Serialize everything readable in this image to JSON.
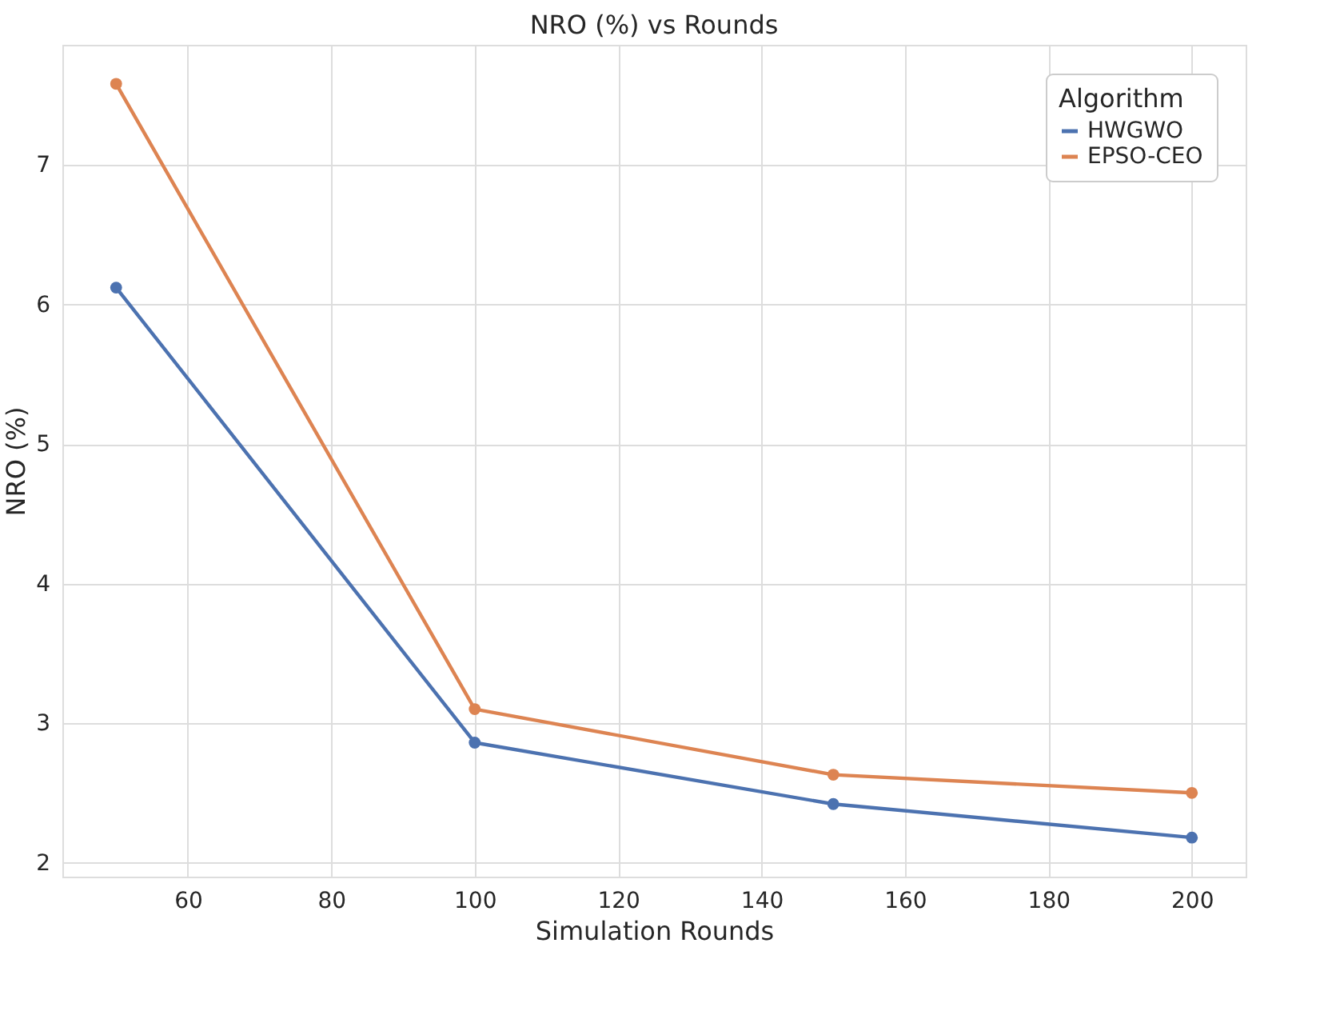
{
  "chart_data": {
    "type": "line",
    "title": "NRO (%) vs Rounds",
    "xlabel": "Simulation Rounds",
    "ylabel": "NRO (%)",
    "legend_title": "Algorithm",
    "x": [
      50,
      100,
      150,
      200
    ],
    "series": [
      {
        "name": "HWGWO",
        "color": "#4c72b0",
        "values": [
          6.12,
          2.86,
          2.42,
          2.18
        ]
      },
      {
        "name": "EPSO-CEO",
        "color": "#dd8452",
        "values": [
          7.58,
          3.1,
          2.63,
          2.5
        ]
      }
    ],
    "xlim": [
      42.5,
      207.5
    ],
    "ylim": [
      1.9,
      7.86
    ],
    "xticks": [
      60,
      80,
      100,
      120,
      140,
      160,
      180,
      200
    ],
    "yticks": [
      2,
      3,
      4,
      5,
      6,
      7
    ],
    "grid": true,
    "legend": "top right",
    "marker": "circle",
    "line_style": "solid"
  }
}
